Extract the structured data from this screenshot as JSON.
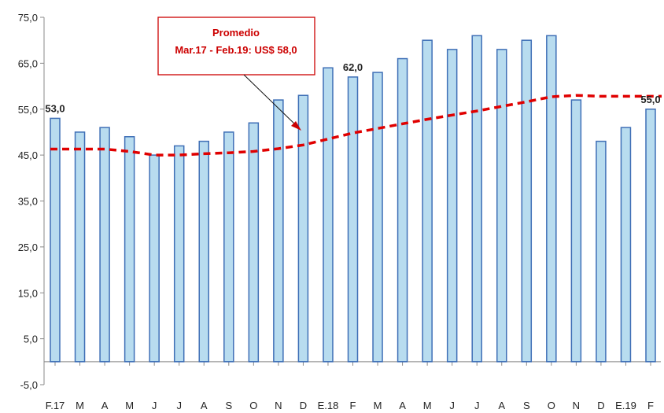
{
  "chart_data": {
    "type": "bar",
    "categories": [
      "F.17",
      "M",
      "A",
      "M",
      "J",
      "J",
      "A",
      "S",
      "O",
      "N",
      "D",
      "E.18",
      "F",
      "M",
      "A",
      "M",
      "J",
      "J",
      "A",
      "S",
      "O",
      "N",
      "D",
      "E.19",
      "F"
    ],
    "values": [
      53,
      50,
      51,
      49,
      45,
      47,
      48,
      50,
      52,
      57,
      58,
      64,
      62,
      63,
      66,
      70,
      68,
      71,
      68,
      70,
      71,
      57,
      48,
      51,
      55
    ],
    "moving_average": [
      null,
      46.3,
      46.3,
      45.8,
      45.0,
      45.0,
      45.3,
      45.5,
      45.8,
      46.4,
      47.2,
      48.5,
      49.8,
      50.8,
      51.8,
      52.8,
      53.7,
      54.6,
      55.6,
      56.6,
      57.7,
      58.0,
      57.8,
      57.8,
      57.8
    ],
    "ylim": [
      -5,
      75
    ],
    "yticks": [
      "-5,0",
      "5,0",
      "15,0",
      "25,0",
      "35,0",
      "45,0",
      "55,0",
      "65,0",
      "75,0"
    ],
    "ytick_values": [
      -5,
      5,
      15,
      25,
      35,
      45,
      55,
      65,
      75
    ],
    "data_labels": [
      {
        "index": 0,
        "text": "53,0"
      },
      {
        "index": 12,
        "text": "62,0"
      },
      {
        "index": 24,
        "text": "55,0"
      }
    ],
    "annotation": {
      "line1": "Promedio",
      "line2": "Mar.17 - Feb.19: US$ 58,0"
    },
    "colors": {
      "bar_fill": "#b8dcef",
      "bar_stroke": "#3f6fb6",
      "avg_line": "#e00000",
      "annotation_border": "#cc0000",
      "annotation_text": "#cc0000"
    },
    "grid": false
  }
}
